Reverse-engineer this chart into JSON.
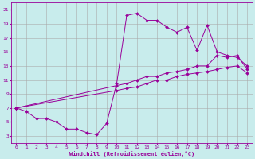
{
  "xlabel": "Windchill (Refroidissement éolien,°C)",
  "bg_color": "#c8ecec",
  "line_color": "#990099",
  "grid_color": "#aaaaaa",
  "xlim": [
    -0.5,
    23.5
  ],
  "ylim": [
    2,
    22
  ],
  "xticks": [
    0,
    1,
    2,
    3,
    4,
    5,
    6,
    7,
    8,
    9,
    10,
    11,
    12,
    13,
    14,
    15,
    16,
    17,
    18,
    19,
    20,
    21,
    22,
    23
  ],
  "yticks": [
    3,
    5,
    7,
    9,
    11,
    13,
    15,
    17,
    19,
    21
  ],
  "line1_x": [
    0,
    1,
    2,
    3,
    4,
    5,
    6,
    7,
    8,
    9,
    10,
    11,
    12,
    13,
    14,
    15,
    16,
    17,
    18,
    19,
    20,
    21,
    22,
    23
  ],
  "line1_y": [
    7,
    6.5,
    5.5,
    5.5,
    5,
    4,
    4,
    3.5,
    3.2,
    4.8,
    10.5,
    20.2,
    20.5,
    19.5,
    19.5,
    18.5,
    17.8,
    18.5,
    15.2,
    18.8,
    15.0,
    14.5,
    14.2,
    13.0
  ],
  "line2_x": [
    0,
    10,
    11,
    12,
    13,
    14,
    15,
    16,
    17,
    18,
    19,
    20,
    21,
    22,
    23
  ],
  "line2_y": [
    7,
    10.2,
    10.5,
    11.0,
    11.5,
    11.5,
    12.0,
    12.2,
    12.5,
    13.0,
    13.0,
    14.5,
    14.2,
    14.5,
    12.5
  ],
  "line3_x": [
    0,
    10,
    11,
    12,
    13,
    14,
    15,
    16,
    17,
    18,
    19,
    20,
    21,
    22,
    23
  ],
  "line3_y": [
    7,
    9.5,
    9.8,
    10.0,
    10.5,
    11.0,
    11.0,
    11.5,
    11.8,
    12.0,
    12.2,
    12.5,
    12.8,
    13.0,
    12.0
  ]
}
